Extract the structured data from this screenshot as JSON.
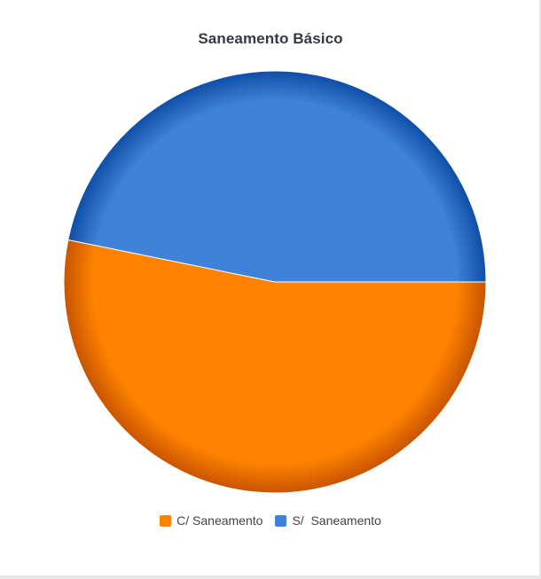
{
  "chart_data": {
    "type": "pie",
    "title": "Saneamento Básico",
    "slices": [
      {
        "label": "C/ Saneamento",
        "value": 53.2,
        "color": "#ff8300"
      },
      {
        "label": "S/  Saneamento",
        "value": 46.8,
        "color": "#3f82d9"
      }
    ],
    "legend_position": "bottom"
  },
  "colors": {
    "orange_edge": "#c85400",
    "blue_edge": "#0f4ea8"
  }
}
